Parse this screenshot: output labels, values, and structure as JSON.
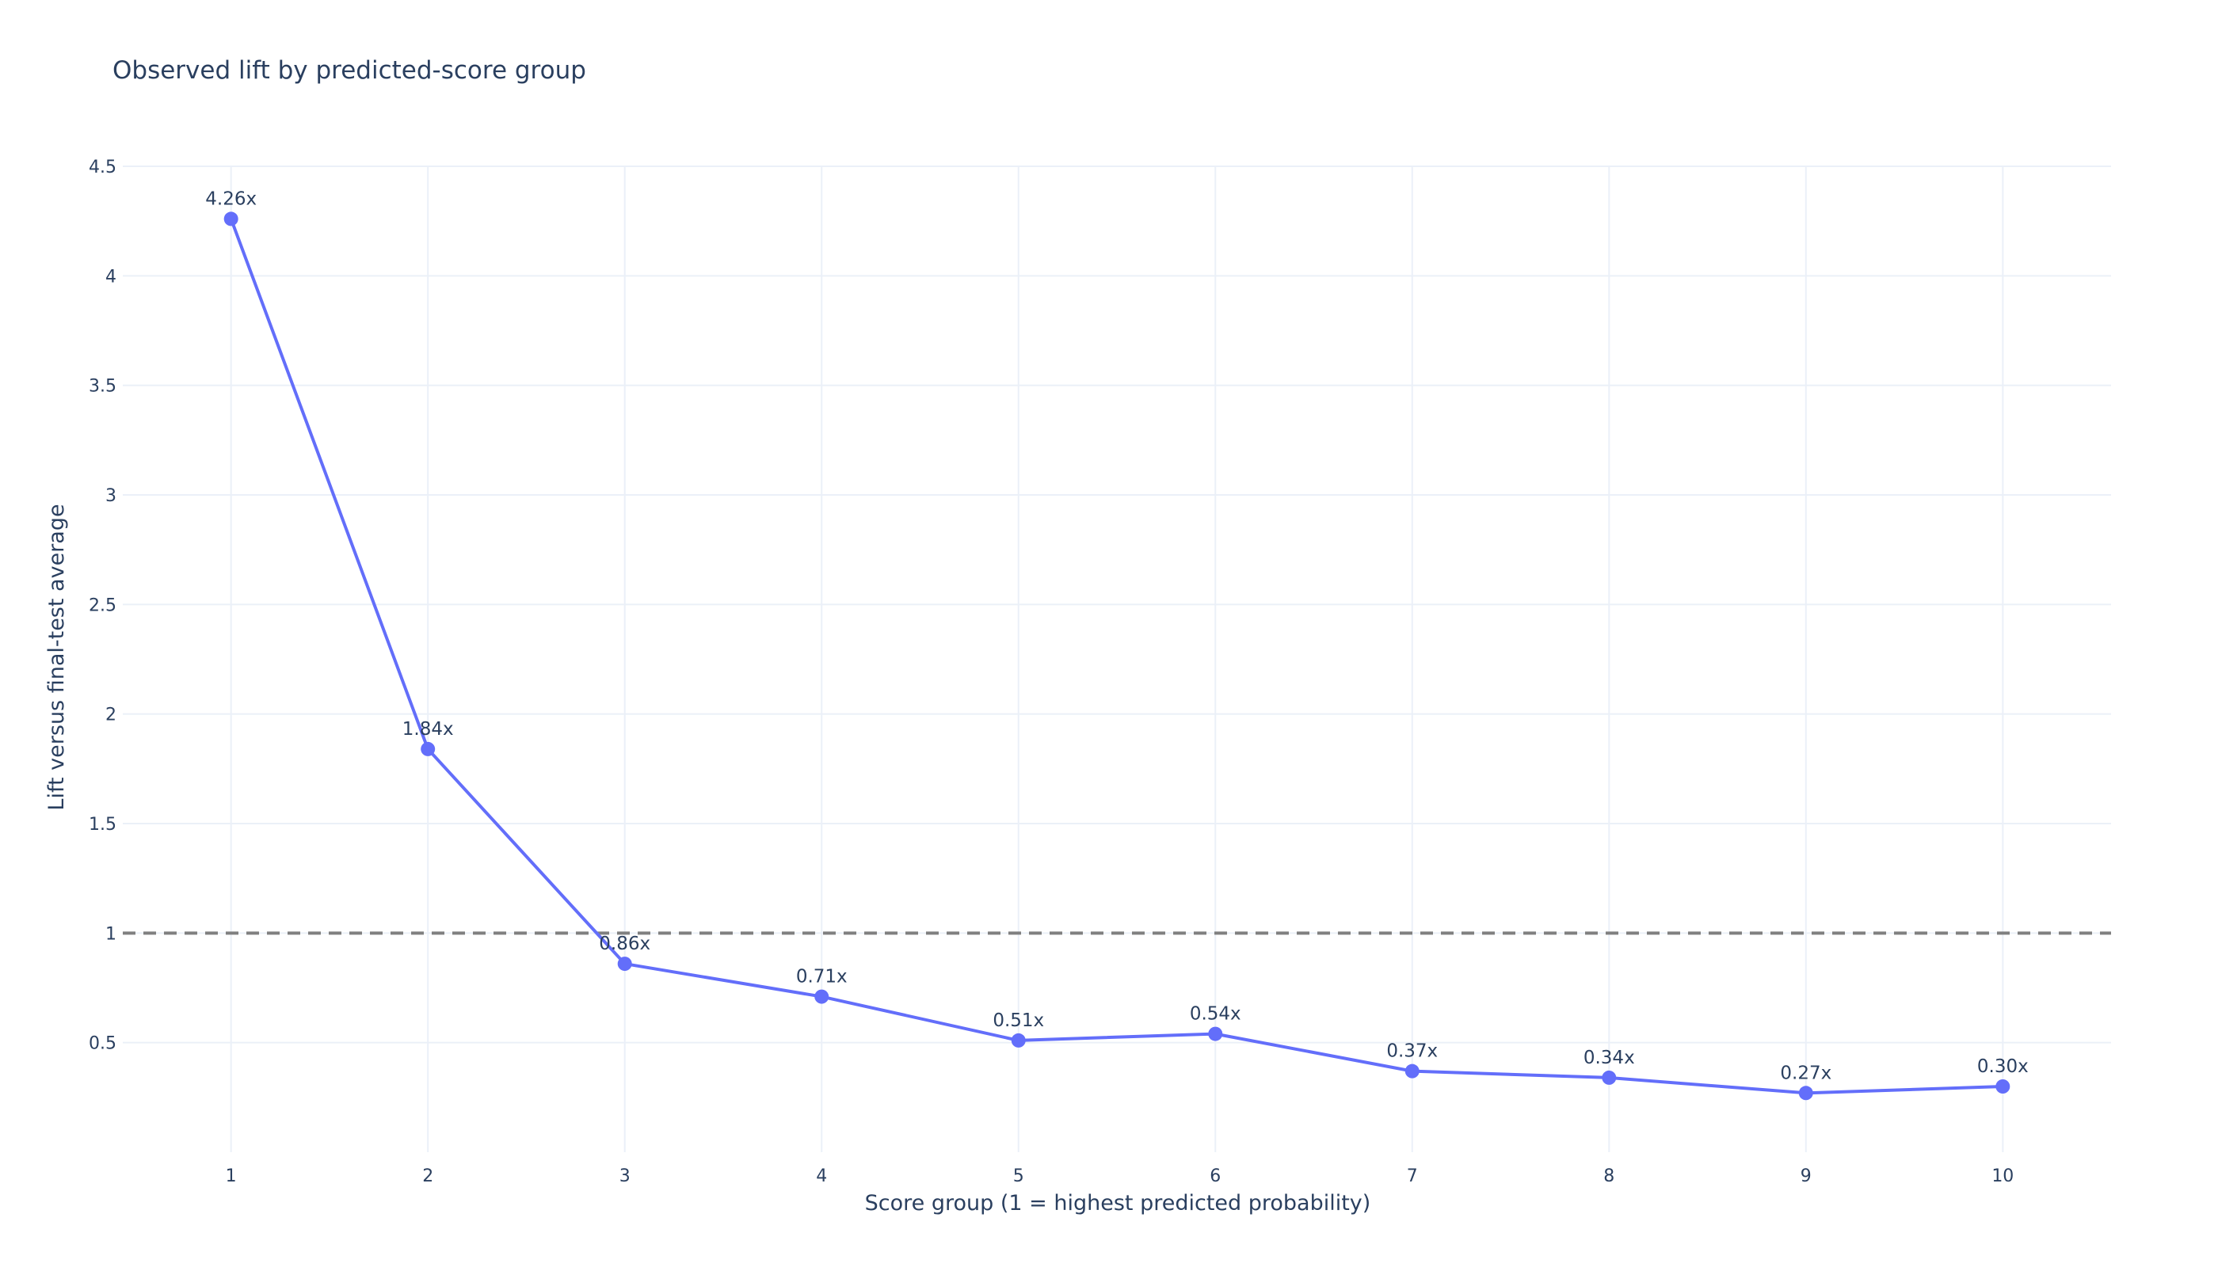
{
  "chart_data": {
    "type": "line",
    "title": "Observed lift by predicted-score group",
    "xlabel": "Score group (1 = highest predicted probability)",
    "ylabel": "Lift versus final-test average",
    "x": [
      1,
      2,
      3,
      4,
      5,
      6,
      7,
      8,
      9,
      10
    ],
    "x_tick_labels": [
      "1",
      "2",
      "3",
      "4",
      "5",
      "6",
      "7",
      "8",
      "9",
      "10"
    ],
    "y_ticks": [
      0.5,
      1,
      1.5,
      2,
      2.5,
      3,
      3.5,
      4,
      4.5
    ],
    "y_tick_labels": [
      "0.5",
      "1",
      "1.5",
      "2",
      "2.5",
      "3",
      "3.5",
      "4",
      "4.5"
    ],
    "xlim": [
      0.45,
      10.55
    ],
    "ylim": [
      0.0,
      4.5
    ],
    "grid": true,
    "series": [
      {
        "values": [
          4.26,
          1.84,
          0.86,
          0.71,
          0.51,
          0.54,
          0.37,
          0.34,
          0.27,
          0.3
        ],
        "labels": [
          "4.26x",
          "1.84x",
          "0.86x",
          "0.71x",
          "0.51x",
          "0.54x",
          "0.37x",
          "0.34x",
          "0.27x",
          "0.30x"
        ],
        "color": "#636efa",
        "mode": "lines+markers+text"
      }
    ],
    "reference_line": {
      "y": 1,
      "style": "dashed",
      "color": "#808080"
    }
  }
}
